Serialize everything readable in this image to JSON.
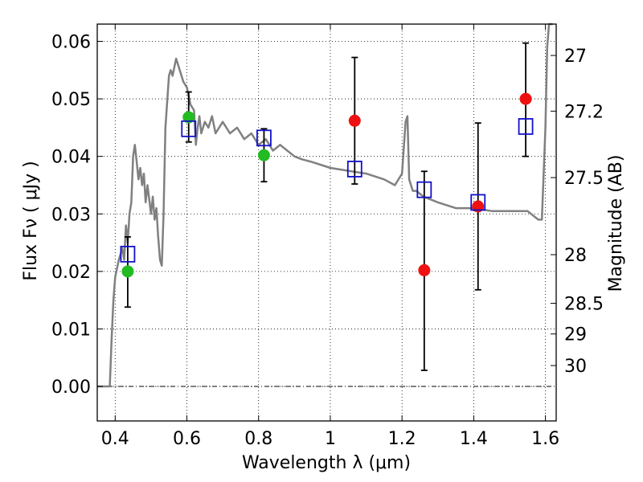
{
  "chart_data": {
    "type": "scatter",
    "xlabel": "Wavelength  λ (μm)",
    "ylabel": "Flux  Fν ( μJy )",
    "y2label": "Magnitude (AB)",
    "xlim": [
      0.35,
      1.63
    ],
    "ylim": [
      -0.006,
      0.063
    ],
    "grid": true,
    "x_ticks": [
      {
        "v": 0.4,
        "label": "0.4"
      },
      {
        "v": 0.6,
        "label": "0.6"
      },
      {
        "v": 0.8,
        "label": "0.8"
      },
      {
        "v": 1.0,
        "label": "1"
      },
      {
        "v": 1.2,
        "label": "1.2"
      },
      {
        "v": 1.4,
        "label": "1.4"
      },
      {
        "v": 1.6,
        "label": "1.6"
      }
    ],
    "y_ticks": [
      {
        "v": 0.0,
        "label": "0.00"
      },
      {
        "v": 0.01,
        "label": "0.01"
      },
      {
        "v": 0.02,
        "label": "0.02"
      },
      {
        "v": 0.03,
        "label": "0.03"
      },
      {
        "v": 0.04,
        "label": "0.04"
      },
      {
        "v": 0.05,
        "label": "0.05"
      },
      {
        "v": 0.06,
        "label": "0.06"
      }
    ],
    "mag_ticks": [
      {
        "mag": 27,
        "label": "27"
      },
      {
        "mag": 27.2,
        "label": "27.2"
      },
      {
        "mag": 27.5,
        "label": "27.5"
      },
      {
        "mag": 28,
        "label": "28"
      },
      {
        "mag": 28.5,
        "label": "28.5"
      },
      {
        "mag": 29,
        "label": "29"
      },
      {
        "mag": 30,
        "label": "30"
      }
    ],
    "colors": {
      "model": "#808080",
      "green": "#22bb22",
      "red": "#ee1111",
      "square": "#1111cc",
      "errorbar": "#000000"
    },
    "series": [
      {
        "name": "model spectrum",
        "kind": "line",
        "x": [
          0.35,
          0.37,
          0.385,
          0.39,
          0.395,
          0.4,
          0.41,
          0.42,
          0.425,
          0.43,
          0.435,
          0.44,
          0.445,
          0.45,
          0.455,
          0.46,
          0.465,
          0.47,
          0.475,
          0.48,
          0.485,
          0.49,
          0.5,
          0.505,
          0.51,
          0.515,
          0.52,
          0.525,
          0.53,
          0.535,
          0.54,
          0.55,
          0.555,
          0.56,
          0.57,
          0.575,
          0.58,
          0.59,
          0.6,
          0.61,
          0.62,
          0.625,
          0.63,
          0.635,
          0.64,
          0.65,
          0.66,
          0.67,
          0.68,
          0.7,
          0.72,
          0.74,
          0.76,
          0.78,
          0.8,
          0.82,
          0.84,
          0.86,
          0.88,
          0.9,
          0.92,
          0.95,
          1.0,
          1.05,
          1.1,
          1.15,
          1.18,
          1.2,
          1.21,
          1.215,
          1.22,
          1.23,
          1.24,
          1.26,
          1.3,
          1.35,
          1.4,
          1.45,
          1.5,
          1.55,
          1.58,
          1.59,
          1.6,
          1.605,
          1.61,
          1.62
        ],
        "y": [
          0.0,
          0.0,
          0.0,
          0.008,
          0.015,
          0.019,
          0.022,
          0.024,
          0.022,
          0.028,
          0.025,
          0.03,
          0.032,
          0.04,
          0.042,
          0.039,
          0.036,
          0.038,
          0.035,
          0.037,
          0.032,
          0.035,
          0.03,
          0.033,
          0.029,
          0.031,
          0.026,
          0.022,
          0.021,
          0.03,
          0.045,
          0.054,
          0.055,
          0.054,
          0.057,
          0.056,
          0.055,
          0.053,
          0.052,
          0.049,
          0.048,
          0.042,
          0.045,
          0.047,
          0.044,
          0.046,
          0.045,
          0.047,
          0.044,
          0.046,
          0.044,
          0.045,
          0.043,
          0.044,
          0.042,
          0.043,
          0.041,
          0.042,
          0.041,
          0.04,
          0.0395,
          0.039,
          0.038,
          0.0375,
          0.037,
          0.036,
          0.035,
          0.037,
          0.046,
          0.047,
          0.036,
          0.034,
          0.034,
          0.033,
          0.032,
          0.031,
          0.031,
          0.0305,
          0.0305,
          0.0305,
          0.029,
          0.029,
          0.045,
          0.059,
          0.063,
          0.063
        ]
      },
      {
        "name": "green points",
        "kind": "points",
        "x": [
          0.435,
          0.605,
          0.815
        ],
        "y": [
          0.02,
          0.0468,
          0.0402
        ]
      },
      {
        "name": "red points",
        "kind": "points",
        "x": [
          1.068,
          1.262,
          1.412,
          1.545
        ],
        "y": [
          0.0462,
          0.0202,
          0.0313,
          0.05
        ]
      },
      {
        "name": "model band flux (squares)",
        "kind": "squares",
        "x": [
          0.435,
          0.605,
          0.815,
          1.068,
          1.262,
          1.412,
          1.545
        ],
        "y": [
          0.023,
          0.0448,
          0.0432,
          0.0378,
          0.0342,
          0.032,
          0.0452
        ]
      },
      {
        "name": "error bars",
        "kind": "errorbars",
        "x": [
          0.435,
          0.605,
          0.815,
          1.068,
          1.262,
          1.412,
          1.545
        ],
        "ylow": [
          0.0138,
          0.0425,
          0.0356,
          0.0352,
          0.0028,
          0.0168,
          0.04
        ],
        "yhigh": [
          0.026,
          0.0512,
          0.0448,
          0.0572,
          0.0374,
          0.0458,
          0.0597
        ]
      }
    ]
  }
}
